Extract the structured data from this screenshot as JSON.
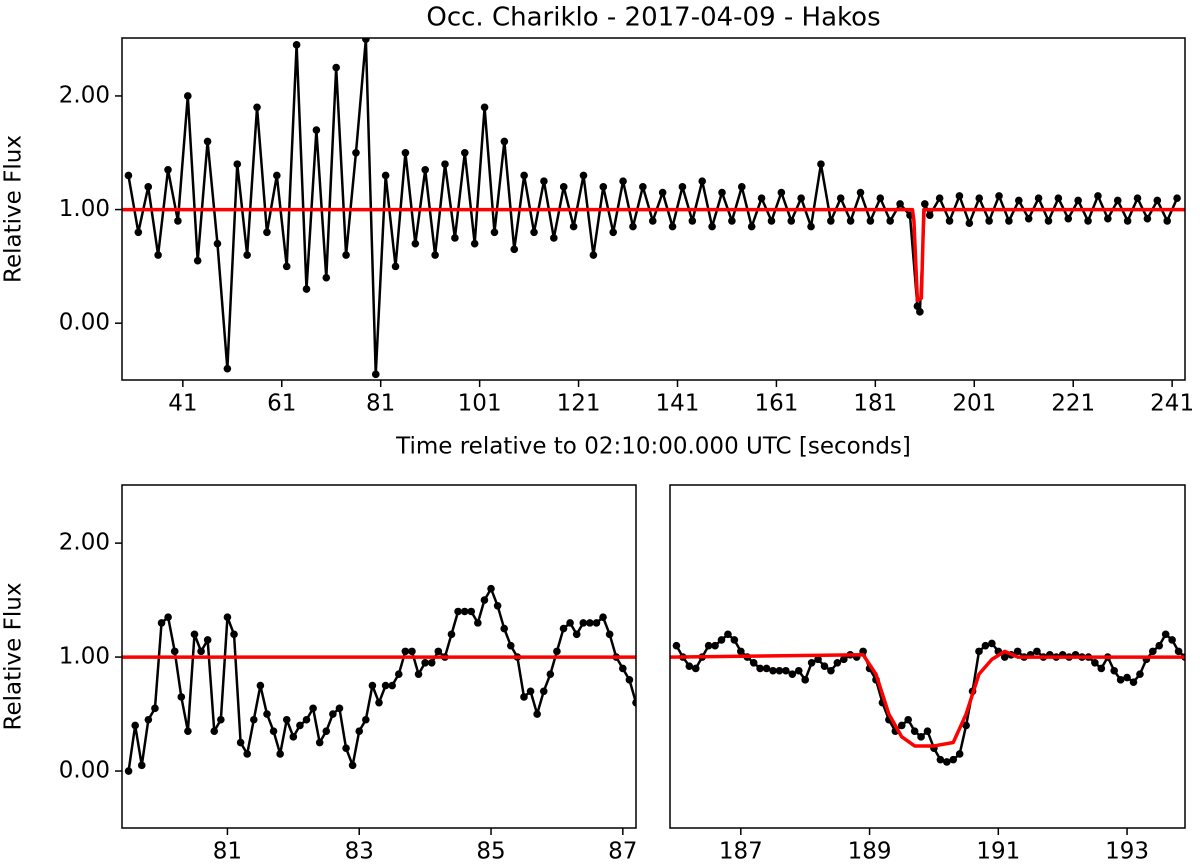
{
  "chart_data": [
    {
      "type": "line",
      "title": "Occ. Chariklo - 2017-04-09 - Hakos",
      "xlabel": "Time relative to 02:10:00.000 UTC [seconds]",
      "ylabel": "Relative Flux",
      "xlim": [
        28.7,
        243.6
      ],
      "ylim": [
        -0.5,
        2.51
      ],
      "xticks": [
        41,
        61,
        81,
        101,
        121,
        141,
        161,
        181,
        201,
        221,
        241
      ],
      "yticks": [
        {
          "value": 0,
          "label": "0.00"
        },
        {
          "value": 1,
          "label": "1.00"
        },
        {
          "value": 2,
          "label": "2.00"
        }
      ],
      "series": [
        {
          "color": "#000000",
          "marker": true,
          "x": [
            30,
            32,
            34,
            36,
            38,
            40,
            42,
            44,
            46,
            48,
            50,
            52,
            54,
            56,
            58,
            60,
            62,
            64,
            66,
            68,
            70,
            72,
            74,
            76,
            78,
            80,
            82,
            84,
            86,
            88,
            90,
            92,
            94,
            96,
            98,
            100,
            102,
            104,
            106,
            108,
            110,
            112,
            114,
            116,
            118,
            120,
            122,
            124,
            126,
            128,
            130,
            132,
            134,
            136,
            138,
            140,
            142,
            144,
            146,
            148,
            150,
            152,
            154,
            156,
            158,
            160,
            162,
            164,
            166,
            168,
            170,
            172,
            174,
            176,
            178,
            180,
            182,
            184,
            186,
            188,
            189.5,
            190,
            191,
            192,
            194,
            196,
            198,
            200,
            202,
            204,
            206,
            208,
            210,
            212,
            214,
            216,
            218,
            220,
            222,
            224,
            226,
            228,
            230,
            232,
            234,
            236,
            238,
            240,
            242
          ],
          "values": [
            1.3,
            0.8,
            1.2,
            0.6,
            1.35,
            0.9,
            2.0,
            0.55,
            1.6,
            0.7,
            -0.4,
            1.4,
            0.6,
            1.9,
            0.8,
            1.3,
            0.5,
            2.45,
            0.3,
            1.7,
            0.4,
            2.25,
            0.6,
            1.5,
            2.5,
            -0.45,
            1.3,
            0.5,
            1.5,
            0.7,
            1.35,
            0.6,
            1.4,
            0.75,
            1.5,
            0.7,
            1.9,
            0.8,
            1.6,
            0.65,
            1.3,
            0.8,
            1.25,
            0.75,
            1.2,
            0.85,
            1.3,
            0.6,
            1.2,
            0.8,
            1.25,
            0.85,
            1.2,
            0.9,
            1.15,
            0.85,
            1.2,
            0.9,
            1.25,
            0.85,
            1.15,
            0.9,
            1.2,
            0.85,
            1.1,
            0.9,
            1.15,
            0.9,
            1.1,
            0.85,
            1.4,
            0.9,
            1.1,
            0.9,
            1.15,
            0.9,
            1.1,
            0.9,
            1.05,
            0.95,
            0.15,
            0.1,
            1.05,
            0.95,
            1.1,
            0.9,
            1.12,
            0.88,
            1.1,
            0.9,
            1.12,
            0.9,
            1.08,
            0.92,
            1.1,
            0.9,
            1.1,
            0.92,
            1.08,
            0.9,
            1.12,
            0.92,
            1.08,
            0.9,
            1.1,
            0.92,
            1.08,
            0.9,
            1.1
          ]
        },
        {
          "color": "#ff0000",
          "marker": false,
          "x": [
            28.7,
            188.5,
            188.8,
            189.5,
            190.3,
            190.8,
            243.6
          ],
          "values": [
            1,
            1,
            0.9,
            0.2,
            0.22,
            1,
            1
          ]
        }
      ]
    },
    {
      "type": "line",
      "ylabel": "Relative Flux",
      "xlim": [
        79.4,
        87.2
      ],
      "ylim": [
        -0.5,
        2.51
      ],
      "xticks": [
        81,
        83,
        85,
        87
      ],
      "yticks": [
        {
          "value": 0,
          "label": "0.00"
        },
        {
          "value": 1,
          "label": "1.00"
        },
        {
          "value": 2,
          "label": "2.00"
        }
      ],
      "series": [
        {
          "color": "#000000",
          "marker": true,
          "x": [
            79.5,
            79.6,
            79.7,
            79.8,
            79.9,
            80.0,
            80.1,
            80.2,
            80.3,
            80.4,
            80.5,
            80.6,
            80.7,
            80.8,
            80.9,
            81.0,
            81.1,
            81.2,
            81.3,
            81.4,
            81.5,
            81.6,
            81.7,
            81.8,
            81.9,
            82.0,
            82.1,
            82.2,
            82.3,
            82.4,
            82.5,
            82.6,
            82.7,
            82.8,
            82.9,
            83.0,
            83.1,
            83.2,
            83.3,
            83.4,
            83.5,
            83.6,
            83.7,
            83.8,
            83.9,
            84.0,
            84.1,
            84.2,
            84.3,
            84.4,
            84.5,
            84.6,
            84.7,
            84.8,
            84.9,
            85.0,
            85.1,
            85.2,
            85.3,
            85.4,
            85.5,
            85.6,
            85.7,
            85.8,
            85.9,
            86.0,
            86.1,
            86.2,
            86.3,
            86.4,
            86.5,
            86.6,
            86.7,
            86.8,
            86.9,
            87.0,
            87.1,
            87.2
          ],
          "values": [
            0.0,
            0.4,
            0.05,
            0.45,
            0.55,
            1.3,
            1.35,
            1.05,
            0.65,
            0.35,
            1.2,
            1.05,
            1.15,
            0.35,
            0.45,
            1.35,
            1.2,
            0.25,
            0.15,
            0.45,
            0.75,
            0.5,
            0.35,
            0.15,
            0.45,
            0.3,
            0.4,
            0.45,
            0.55,
            0.25,
            0.35,
            0.5,
            0.55,
            0.2,
            0.05,
            0.35,
            0.45,
            0.75,
            0.6,
            0.75,
            0.75,
            0.85,
            1.05,
            1.05,
            0.85,
            0.95,
            0.95,
            1.05,
            1.0,
            1.2,
            1.4,
            1.4,
            1.4,
            1.3,
            1.5,
            1.6,
            1.45,
            1.25,
            1.1,
            1.0,
            0.65,
            0.7,
            0.5,
            0.7,
            0.85,
            1.05,
            1.25,
            1.3,
            1.2,
            1.3,
            1.3,
            1.3,
            1.35,
            1.2,
            1.0,
            0.9,
            0.8,
            0.6
          ]
        },
        {
          "color": "#ff0000",
          "marker": false,
          "x": [
            79.4,
            87.2
          ],
          "values": [
            1,
            1
          ]
        }
      ]
    },
    {
      "type": "line",
      "xlim": [
        185.9,
        193.9
      ],
      "ylim": [
        -0.5,
        2.51
      ],
      "xticks": [
        187,
        189,
        191,
        193
      ],
      "series": [
        {
          "color": "#000000",
          "marker": true,
          "x": [
            186.0,
            186.1,
            186.2,
            186.3,
            186.4,
            186.5,
            186.6,
            186.7,
            186.8,
            186.9,
            187.0,
            187.1,
            187.2,
            187.3,
            187.4,
            187.5,
            187.6,
            187.7,
            187.8,
            187.9,
            188.0,
            188.1,
            188.2,
            188.3,
            188.4,
            188.5,
            188.6,
            188.7,
            188.8,
            188.9,
            189.0,
            189.1,
            189.2,
            189.3,
            189.4,
            189.5,
            189.6,
            189.7,
            189.8,
            189.9,
            190.0,
            190.1,
            190.2,
            190.3,
            190.4,
            190.5,
            190.6,
            190.7,
            190.8,
            190.9,
            191.0,
            191.1,
            191.2,
            191.3,
            191.4,
            191.5,
            191.6,
            191.7,
            191.8,
            191.9,
            192.0,
            192.1,
            192.2,
            192.3,
            192.4,
            192.5,
            192.6,
            192.7,
            192.8,
            192.9,
            193.0,
            193.1,
            193.2,
            193.3,
            193.4,
            193.5,
            193.6,
            193.7,
            193.8,
            193.9
          ],
          "values": [
            1.1,
            1.0,
            0.92,
            0.9,
            1.0,
            1.1,
            1.1,
            1.15,
            1.2,
            1.15,
            1.05,
            1.0,
            0.95,
            0.9,
            0.9,
            0.88,
            0.88,
            0.88,
            0.85,
            0.88,
            0.8,
            0.95,
            0.98,
            0.92,
            0.88,
            0.95,
            0.98,
            1.02,
            1.0,
            1.05,
            0.9,
            0.8,
            0.6,
            0.45,
            0.35,
            0.4,
            0.45,
            0.35,
            0.3,
            0.35,
            0.2,
            0.1,
            0.08,
            0.1,
            0.15,
            0.4,
            0.7,
            1.05,
            1.1,
            1.12,
            1.05,
            1.0,
            1.02,
            1.05,
            1.0,
            1.02,
            1.05,
            1.0,
            1.02,
            1.0,
            1.02,
            1.0,
            1.02,
            1.0,
            1.0,
            0.95,
            0.9,
            1.0,
            0.88,
            0.8,
            0.82,
            0.78,
            0.85,
            0.98,
            1.05,
            1.1,
            1.2,
            1.15,
            1.05,
            1.0
          ]
        },
        {
          "color": "#ff0000",
          "marker": false,
          "x": [
            185.9,
            188.9,
            189.1,
            189.3,
            189.5,
            189.7,
            190.0,
            190.3,
            190.5,
            190.7,
            190.9,
            191.1,
            191.3,
            193.9
          ],
          "values": [
            1,
            1.02,
            0.85,
            0.5,
            0.3,
            0.22,
            0.22,
            0.25,
            0.5,
            0.85,
            0.98,
            1.05,
            1,
            1
          ]
        }
      ]
    }
  ]
}
